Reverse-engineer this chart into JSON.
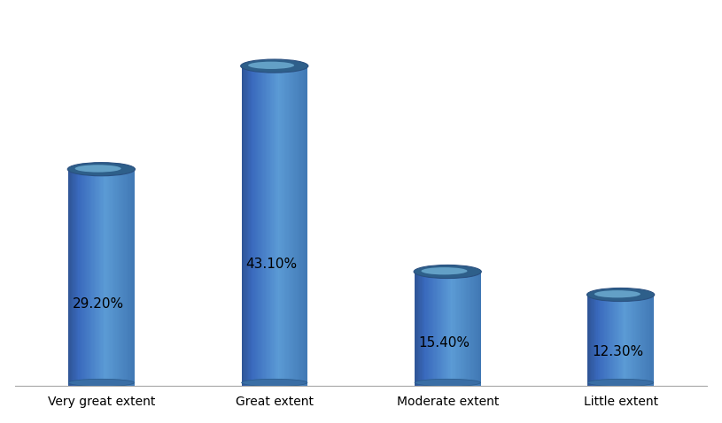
{
  "categories": [
    "Very great extent",
    "Great extent",
    "Moderate extent",
    "Little extent"
  ],
  "values": [
    29.2,
    43.1,
    15.4,
    12.3
  ],
  "labels": [
    "29.20%",
    "43.10%",
    "15.40%",
    "12.30%"
  ],
  "bar_color_left": "#3A6EA5",
  "bar_color_mid": "#5B9BD5",
  "bar_color_right": "#4A85C0",
  "bar_color_top": "#6BAED6",
  "bar_color_top_dark": "#2E5F8A",
  "background_color": "#FFFFFF",
  "label_fontsize": 11,
  "tick_fontsize": 10,
  "bar_width": 0.38,
  "x_positions": [
    0,
    1,
    2,
    3
  ],
  "xlim": [
    -0.5,
    3.5
  ],
  "ylim": [
    0,
    50
  ]
}
